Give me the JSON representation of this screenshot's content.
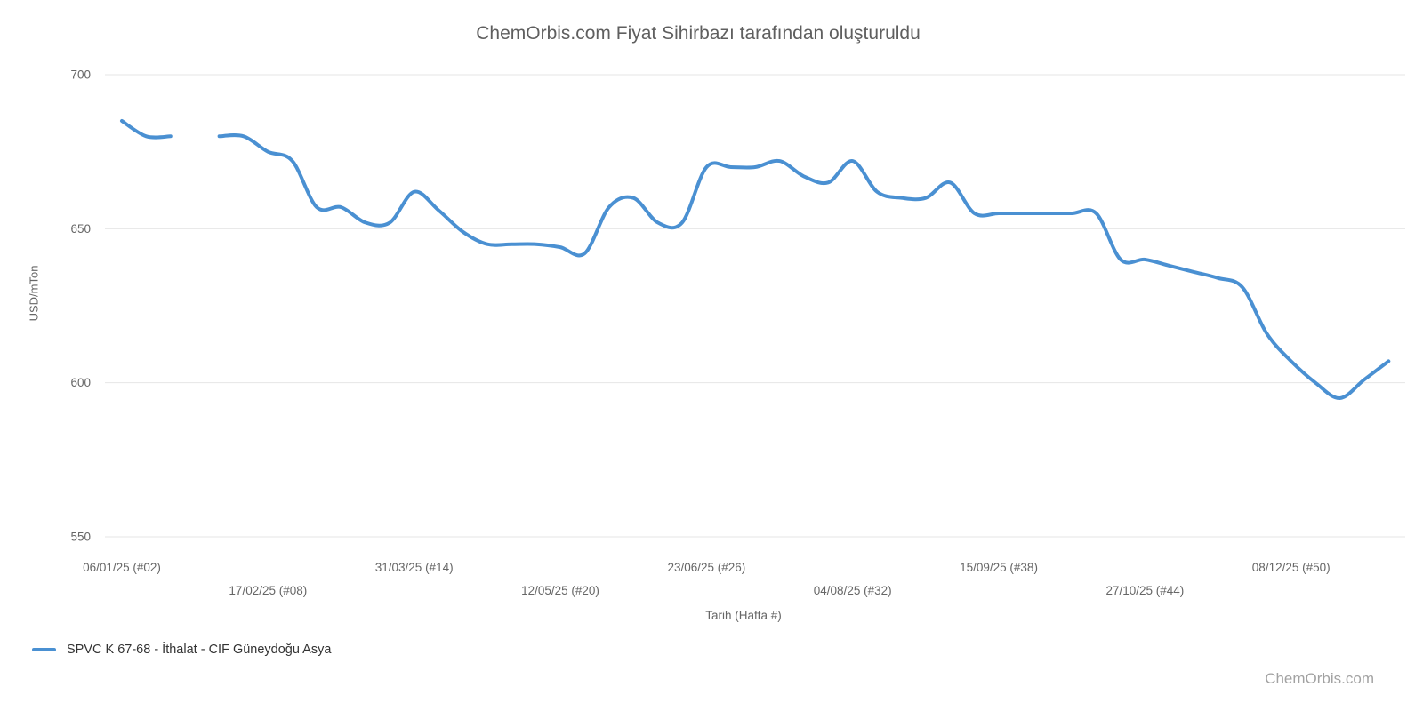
{
  "watermark": "ChemOrbis.com",
  "chart_data": {
    "type": "line",
    "title": "ChemOrbis.com Fiyat Sihirbazı tarafından oluşturuldu",
    "xlabel": "Tarih (Hafta #)",
    "ylabel": "USD/mTon",
    "ylim": [
      550,
      700
    ],
    "yticks": [
      700,
      650,
      600,
      550
    ],
    "grid": true,
    "legend_position": "bottom-left",
    "line_color": "#4a90d2",
    "gridline_color": "#e6e6e6",
    "xticks": [
      {
        "week": 2,
        "label": "06/01/25 (#02)",
        "row": 1
      },
      {
        "week": 8,
        "label": "17/02/25 (#08)",
        "row": 2
      },
      {
        "week": 14,
        "label": "31/03/25 (#14)",
        "row": 1
      },
      {
        "week": 20,
        "label": "12/05/25 (#20)",
        "row": 2
      },
      {
        "week": 26,
        "label": "23/06/25 (#26)",
        "row": 1
      },
      {
        "week": 32,
        "label": "04/08/25 (#32)",
        "row": 2
      },
      {
        "week": 38,
        "label": "15/09/25 (#38)",
        "row": 1
      },
      {
        "week": 44,
        "label": "27/10/25 (#44)",
        "row": 2
      },
      {
        "week": 50,
        "label": "08/12/25 (#50)",
        "row": 1
      }
    ],
    "series": [
      {
        "name": "SPVC K 67-68 - İthalat - CIF Güneydoğu Asya",
        "color": "#4a90d2",
        "points": [
          [
            2,
            685
          ],
          [
            3,
            680
          ],
          [
            4,
            680
          ],
          [
            5,
            null
          ],
          [
            6,
            680
          ],
          [
            7,
            680
          ],
          [
            8,
            675
          ],
          [
            9,
            672
          ],
          [
            10,
            657
          ],
          [
            11,
            657
          ],
          [
            12,
            652
          ],
          [
            13,
            652
          ],
          [
            14,
            662
          ],
          [
            15,
            656
          ],
          [
            16,
            649
          ],
          [
            17,
            645
          ],
          [
            18,
            645
          ],
          [
            19,
            645
          ],
          [
            20,
            644
          ],
          [
            21,
            642
          ],
          [
            22,
            657
          ],
          [
            23,
            660
          ],
          [
            24,
            652
          ],
          [
            25,
            652
          ],
          [
            26,
            670
          ],
          [
            27,
            670
          ],
          [
            28,
            670
          ],
          [
            29,
            672
          ],
          [
            30,
            667
          ],
          [
            31,
            665
          ],
          [
            32,
            672
          ],
          [
            33,
            662
          ],
          [
            34,
            660
          ],
          [
            35,
            660
          ],
          [
            36,
            665
          ],
          [
            37,
            655
          ],
          [
            38,
            655
          ],
          [
            39,
            655
          ],
          [
            40,
            655
          ],
          [
            41,
            655
          ],
          [
            42,
            655
          ],
          [
            43,
            640
          ],
          [
            44,
            640
          ],
          [
            45,
            638
          ],
          [
            46,
            636
          ],
          [
            47,
            634
          ],
          [
            48,
            631
          ],
          [
            49,
            616
          ],
          [
            50,
            607
          ],
          [
            51,
            600
          ],
          [
            52,
            595
          ],
          [
            53,
            601
          ],
          [
            54,
            607
          ]
        ]
      }
    ]
  }
}
